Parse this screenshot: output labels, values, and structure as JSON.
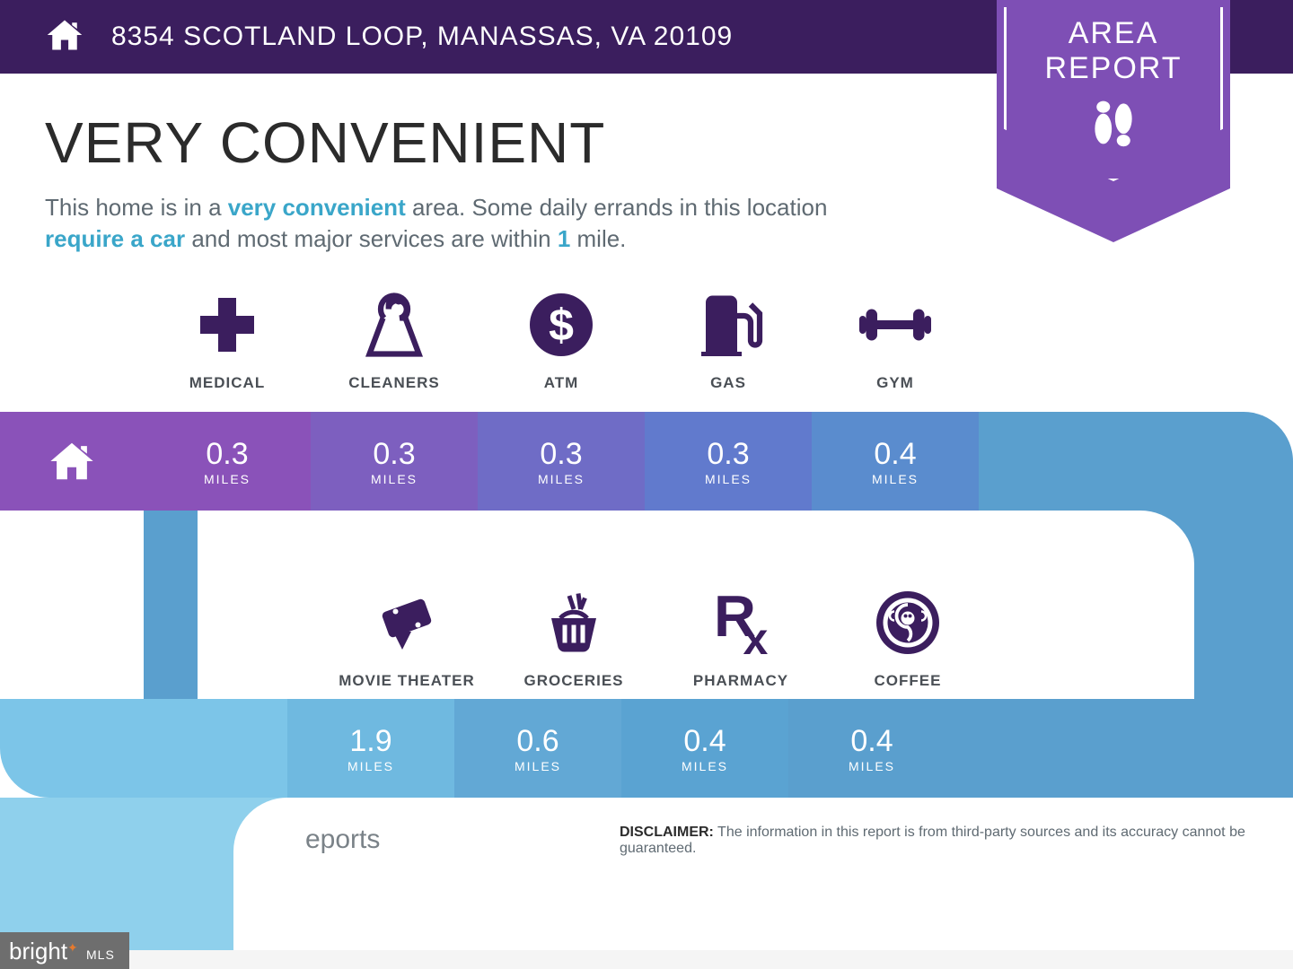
{
  "header": {
    "address": "8354 SCOTLAND LOOP, MANASSAS, VA 20109"
  },
  "badge": {
    "line1": "AREA",
    "line2": "REPORT"
  },
  "title": "VERY CONVENIENT",
  "subtitle_parts": {
    "p1": "This home is in a ",
    "b1": "very convenient",
    "p2": " area. Some daily errands in this location ",
    "b2": "require a car",
    "p3": " and most major services are within ",
    "b3": "1",
    "p4": " mile."
  },
  "colors": {
    "header_bg": "#3b1e5e",
    "badge_bg": "#7e4fb5",
    "icon_fill": "#3b1e5e",
    "accent_text": "#3aa6c9",
    "title_text": "#2b2b2b",
    "body_text": "#5f6a72",
    "page_bg": "#ffffff"
  },
  "row1": {
    "start_color": "#8a52b9",
    "items": [
      {
        "icon": "medical",
        "label": "MEDICAL",
        "distance": "0.3",
        "unit": "MILES",
        "color": "#8a52b9"
      },
      {
        "icon": "cleaners",
        "label": "CLEANERS",
        "distance": "0.3",
        "unit": "MILES",
        "color": "#7d5fbf"
      },
      {
        "icon": "atm",
        "label": "ATM",
        "distance": "0.3",
        "unit": "MILES",
        "color": "#6f6cc6"
      },
      {
        "icon": "gas",
        "label": "GAS",
        "distance": "0.3",
        "unit": "MILES",
        "color": "#617acd"
      },
      {
        "icon": "gym",
        "label": "GYM",
        "distance": "0.4",
        "unit": "MILES",
        "color": "#5a8cce"
      }
    ],
    "cap_color": "#5a9fce"
  },
  "row2": {
    "bend_bg_color": "#5a9fce",
    "items": [
      {
        "icon": "movie",
        "label": "MOVIE THEATER",
        "distance": "1.9",
        "unit": "MILES",
        "color": "#6fb9e0"
      },
      {
        "icon": "groceries",
        "label": "GROCERIES",
        "distance": "0.6",
        "unit": "MILES",
        "color": "#62a8d5"
      },
      {
        "icon": "pharmacy",
        "label": "PHARMACY",
        "distance": "0.4",
        "unit": "MILES",
        "color": "#5aa3d2"
      },
      {
        "icon": "coffee",
        "label": "COFFEE",
        "distance": "0.4",
        "unit": "MILES",
        "color": "#5a9fce"
      }
    ],
    "left_cap_color": "#7cc5e8",
    "right_fill_color": "#5a9fce",
    "tail_color": "#8fd0ec"
  },
  "footer": {
    "reports_label": "eports",
    "disclaimer_label": "DISCLAIMER:",
    "disclaimer_text": " The information in this report is from third-party sources and its accuracy cannot be guaranteed."
  },
  "watermark": {
    "brand": "bright",
    "suffix": "MLS"
  }
}
